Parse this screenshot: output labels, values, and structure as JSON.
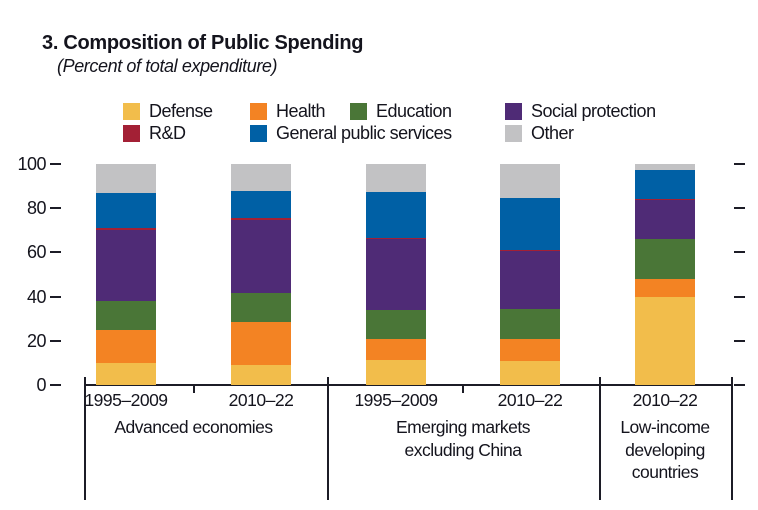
{
  "title": "3. Composition of Public Spending",
  "subtitle": "(Percent of total expenditure)",
  "colors": {
    "defense": "#F2BD4B",
    "health": "#F38323",
    "education": "#4A7637",
    "social_protection": "#4F2B76",
    "rd": "#A32035",
    "general_public_services": "#0060A5",
    "other": "#C2C2C4",
    "text": "#14141d",
    "axis": "#1c1c26"
  },
  "chart_data": {
    "type": "bar",
    "stacked": true,
    "title": "3. Composition of Public Spending",
    "subtitle": "(Percent of total expenditure)",
    "xlabel": "",
    "ylabel": "Percent of total expenditure",
    "ylim": [
      0,
      100
    ],
    "yticks": [
      0,
      20,
      40,
      60,
      80,
      100
    ],
    "grid": false,
    "legend_position": "top",
    "categories": [
      "1995–2009",
      "2010–22",
      "1995–2009",
      "2010–22",
      "2010–22"
    ],
    "groups": [
      {
        "label": "Advanced economies",
        "bar_indexes": [
          0,
          1
        ]
      },
      {
        "label": "Emerging markets excluding China",
        "bar_indexes": [
          2,
          3
        ]
      },
      {
        "label": "Low-income developing countries",
        "bar_indexes": [
          4
        ]
      }
    ],
    "series": [
      {
        "name": "Defense",
        "color": "#F2BD4B",
        "values": [
          10,
          9,
          11.5,
          11,
          40
        ]
      },
      {
        "name": "Health",
        "color": "#F38323",
        "values": [
          15,
          19.5,
          9.5,
          10,
          8
        ]
      },
      {
        "name": "Education",
        "color": "#4A7637",
        "values": [
          13,
          13,
          13,
          13.5,
          18
        ]
      },
      {
        "name": "Social protection",
        "color": "#4F2B76",
        "values": [
          32,
          33,
          32,
          26,
          17.5
        ]
      },
      {
        "name": "R&D",
        "color": "#A32035",
        "values": [
          1,
          1,
          0.7,
          0.7,
          0.7
        ]
      },
      {
        "name": "General public services",
        "color": "#0060A5",
        "values": [
          16,
          12.5,
          20.5,
          23.3,
          13.3
        ]
      },
      {
        "name": "Other",
        "color": "#C2C2C4",
        "values": [
          13,
          12,
          12.8,
          15.5,
          2.5
        ]
      }
    ],
    "legend_rows": [
      [
        "Defense",
        "Health",
        "Education",
        "Social protection"
      ],
      [
        "R&D",
        "General public services",
        "Other"
      ]
    ]
  }
}
